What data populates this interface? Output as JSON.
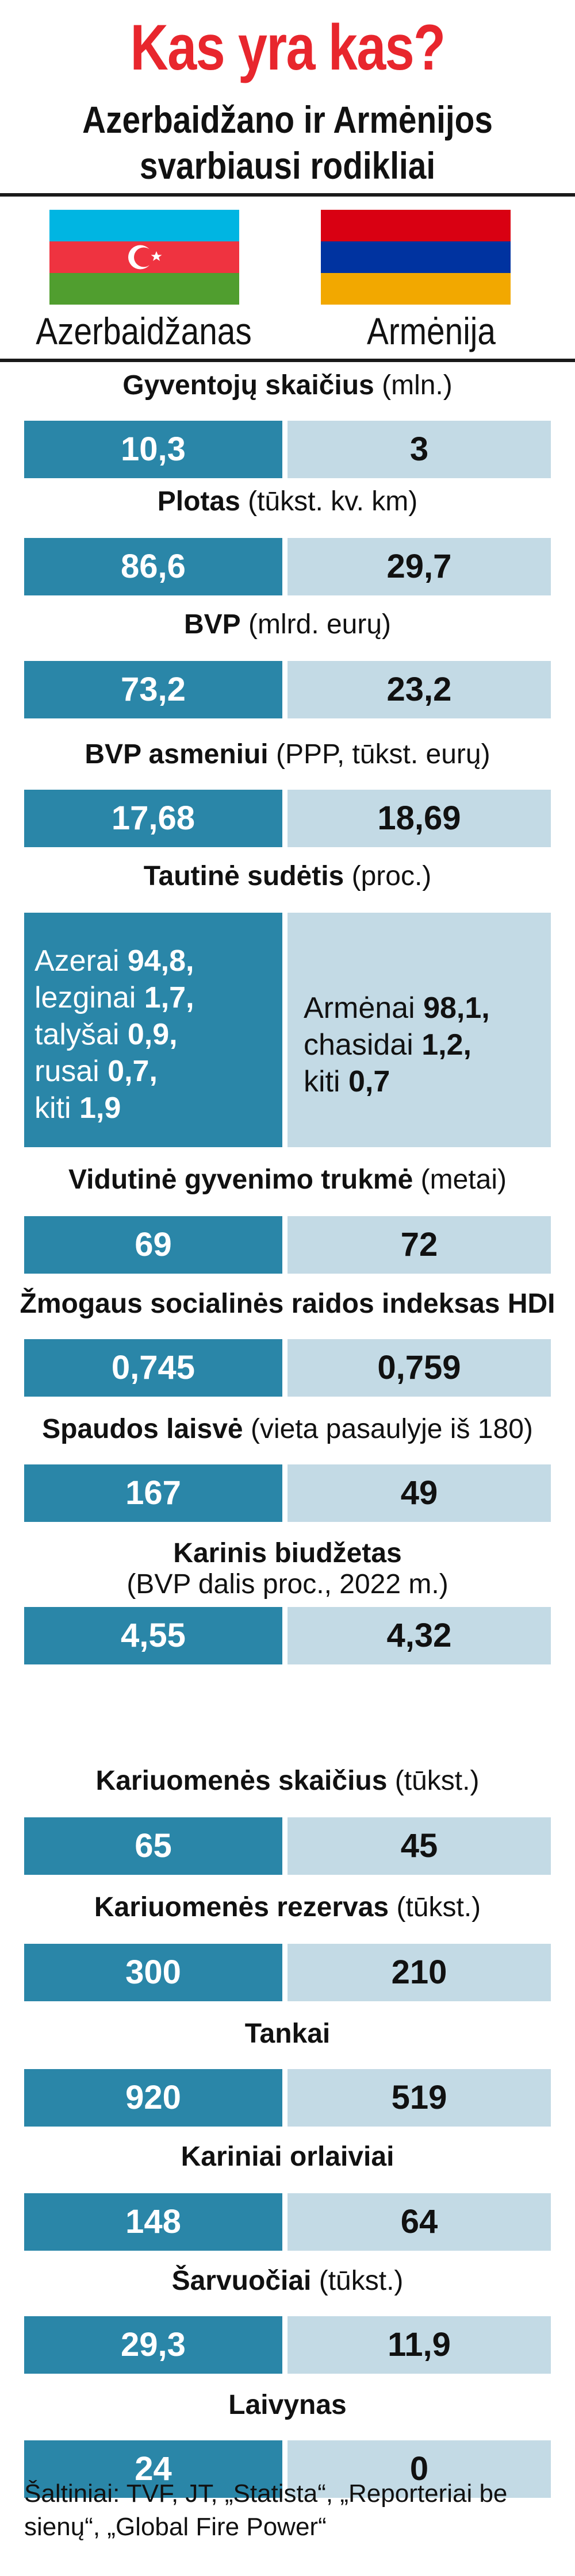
{
  "header": {
    "title": "Kas yra kas?",
    "subtitle_line1": "Azerbaidžano ir Armėnijos",
    "subtitle_line2": "svarbiausi rodikliai"
  },
  "countries": {
    "left": "Azerbaidžanas",
    "right": "Armėnija"
  },
  "colors": {
    "title": "#e8262d",
    "azerbaijan_bar": "#2a86a8",
    "armenia_bar": "#c3dae5",
    "az_flag": [
      "#00b5e2",
      "#ef3340",
      "#509e2f"
    ],
    "am_flag": [
      "#d90012",
      "#0033a0",
      "#f2a800"
    ]
  },
  "icons": [
    "azerbaijan-flag-icon",
    "armenia-flag-icon"
  ],
  "chart_data": {
    "type": "table",
    "series": [
      {
        "name": "Azerbaidžanas"
      },
      {
        "name": "Armėnija"
      }
    ],
    "rows": [
      {
        "label": "Gyventojų skaičius",
        "unit": "(mln.)",
        "az": "10,3",
        "am": "3"
      },
      {
        "label": "Plotas",
        "unit": "(tūkst. kv. km)",
        "az": "86,6",
        "am": "29,7"
      },
      {
        "label": "BVP",
        "unit": "(mlrd. eurų)",
        "az": "73,2",
        "am": "23,2"
      },
      {
        "label": "BVP asmeniui",
        "unit": "(PPP, tūkst. eurų)",
        "az": "17,68",
        "am": "18,69"
      },
      {
        "label": "Vidutinė gyvenimo trukmė",
        "unit": "(metai)",
        "az": "69",
        "am": "72"
      },
      {
        "label": "Žmogaus socialinės raidos indeksas HDI",
        "unit": "",
        "az": "0,745",
        "am": "0,759"
      },
      {
        "label": "Spaudos laisvė",
        "unit": "(vieta pasaulyje iš 180)",
        "az": "167",
        "am": "49"
      },
      {
        "label": "Karinis biudžetas",
        "unit": "(BVP dalis proc., 2022 m.)",
        "az": "4,55",
        "am": "4,32"
      },
      {
        "label": "Kariuomenės skaičius",
        "unit": "(tūkst.)",
        "az": "65",
        "am": "45"
      },
      {
        "label": "Kariuomenės rezervas",
        "unit": "(tūkst.)",
        "az": "300",
        "am": "210"
      },
      {
        "label": "Tankai",
        "unit": "",
        "az": "920",
        "am": "519"
      },
      {
        "label": "Kariniai orlaiviai",
        "unit": "",
        "az": "148",
        "am": "64"
      },
      {
        "label": "Šarvuočiai",
        "unit": "(tūkst.)",
        "az": "29,3",
        "am": "11,9"
      },
      {
        "label": "Laivynas",
        "unit": "",
        "az": "24",
        "am": "0"
      }
    ],
    "ethnic": {
      "label": "Tautinė sudėtis",
      "unit": "(proc.)",
      "az": [
        {
          "group": "Azerai",
          "value": "94,8,"
        },
        {
          "group": "lezginai",
          "value": "1,7,"
        },
        {
          "group": "talyšai",
          "value": "0,9,"
        },
        {
          "group": "rusai",
          "value": "0,7,"
        },
        {
          "group": "kiti",
          "value": "1,9"
        }
      ],
      "am": [
        {
          "group": "Armėnai",
          "value": "98,1,"
        },
        {
          "group": "chasidai",
          "value": "1,2,"
        },
        {
          "group": "kiti",
          "value": "0,7"
        }
      ]
    }
  },
  "footer": {
    "source": "Šaltiniai: TVF, JT, „Statista“, „Reporteriai be sienų“, „Global Fire Power“"
  }
}
